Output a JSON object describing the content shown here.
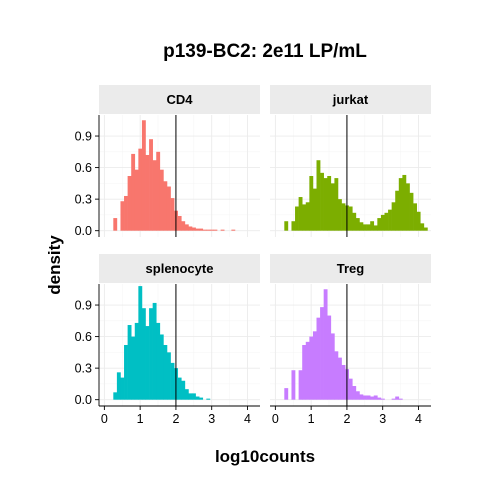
{
  "chart_data": {
    "type": "histogram",
    "title": "p139-BC2: 2e11 LP/mL",
    "xlabel": "log10counts",
    "ylabel": "density",
    "xlim": [
      -0.15,
      4.35
    ],
    "ylim": [
      -0.06,
      1.1
    ],
    "x_ticks": [
      0,
      1,
      2,
      3,
      4
    ],
    "y_ticks": [
      0.0,
      0.3,
      0.6,
      0.9
    ],
    "y_tick_labels": [
      "0.0",
      "0.3",
      "0.6",
      "0.9"
    ],
    "vline_x": 2,
    "bin_width": 0.1,
    "layout": "2x2 facet grid",
    "grid": true,
    "facets": [
      {
        "label": "CD4",
        "color": "#F8766D",
        "bins": [
          {
            "x": 0.3,
            "y": 0.12
          },
          {
            "x": 0.5,
            "y": 0.28
          },
          {
            "x": 0.6,
            "y": 0.33
          },
          {
            "x": 0.7,
            "y": 0.52
          },
          {
            "x": 0.8,
            "y": 0.73
          },
          {
            "x": 0.9,
            "y": 0.58
          },
          {
            "x": 1.0,
            "y": 0.78
          },
          {
            "x": 1.1,
            "y": 1.05
          },
          {
            "x": 1.2,
            "y": 0.72
          },
          {
            "x": 1.3,
            "y": 0.87
          },
          {
            "x": 1.4,
            "y": 0.67
          },
          {
            "x": 1.5,
            "y": 0.75
          },
          {
            "x": 1.6,
            "y": 0.58
          },
          {
            "x": 1.7,
            "y": 0.47
          },
          {
            "x": 1.8,
            "y": 0.42
          },
          {
            "x": 1.9,
            "y": 0.31
          },
          {
            "x": 2.0,
            "y": 0.19
          },
          {
            "x": 2.1,
            "y": 0.14
          },
          {
            "x": 2.2,
            "y": 0.09
          },
          {
            "x": 2.3,
            "y": 0.06
          },
          {
            "x": 2.4,
            "y": 0.04
          },
          {
            "x": 2.5,
            "y": 0.03
          },
          {
            "x": 2.6,
            "y": 0.02
          },
          {
            "x": 2.7,
            "y": 0.02
          },
          {
            "x": 2.8,
            "y": 0.01
          },
          {
            "x": 2.9,
            "y": 0.01
          },
          {
            "x": 3.0,
            "y": 0.01
          },
          {
            "x": 3.1,
            "y": 0.01
          },
          {
            "x": 3.3,
            "y": 0.01
          },
          {
            "x": 3.6,
            "y": 0.01
          }
        ]
      },
      {
        "label": "jurkat",
        "color": "#7CAE00",
        "bins": [
          {
            "x": 0.3,
            "y": 0.09
          },
          {
            "x": 0.5,
            "y": 0.09
          },
          {
            "x": 0.6,
            "y": 0.23
          },
          {
            "x": 0.7,
            "y": 0.32
          },
          {
            "x": 0.8,
            "y": 0.25
          },
          {
            "x": 0.9,
            "y": 0.27
          },
          {
            "x": 1.0,
            "y": 0.52
          },
          {
            "x": 1.1,
            "y": 0.4
          },
          {
            "x": 1.2,
            "y": 0.67
          },
          {
            "x": 1.3,
            "y": 0.55
          },
          {
            "x": 1.4,
            "y": 0.5
          },
          {
            "x": 1.5,
            "y": 0.52
          },
          {
            "x": 1.6,
            "y": 0.45
          },
          {
            "x": 1.7,
            "y": 0.5
          },
          {
            "x": 1.8,
            "y": 0.3
          },
          {
            "x": 1.9,
            "y": 0.26
          },
          {
            "x": 2.0,
            "y": 0.24
          },
          {
            "x": 2.1,
            "y": 0.23
          },
          {
            "x": 2.2,
            "y": 0.17
          },
          {
            "x": 2.3,
            "y": 0.12
          },
          {
            "x": 2.4,
            "y": 0.08
          },
          {
            "x": 2.5,
            "y": 0.06
          },
          {
            "x": 2.6,
            "y": 0.06
          },
          {
            "x": 2.7,
            "y": 0.09
          },
          {
            "x": 2.8,
            "y": 0.05
          },
          {
            "x": 2.9,
            "y": 0.12
          },
          {
            "x": 3.0,
            "y": 0.15
          },
          {
            "x": 3.1,
            "y": 0.17
          },
          {
            "x": 3.2,
            "y": 0.2
          },
          {
            "x": 3.3,
            "y": 0.27
          },
          {
            "x": 3.4,
            "y": 0.38
          },
          {
            "x": 3.5,
            "y": 0.5
          },
          {
            "x": 3.6,
            "y": 0.53
          },
          {
            "x": 3.7,
            "y": 0.45
          },
          {
            "x": 3.8,
            "y": 0.36
          },
          {
            "x": 3.9,
            "y": 0.26
          },
          {
            "x": 4.0,
            "y": 0.18
          },
          {
            "x": 4.1,
            "y": 0.07
          },
          {
            "x": 4.2,
            "y": 0.03
          }
        ]
      },
      {
        "label": "splenocyte",
        "color": "#00BFC4",
        "bins": [
          {
            "x": 0.3,
            "y": 0.07
          },
          {
            "x": 0.4,
            "y": 0.26
          },
          {
            "x": 0.5,
            "y": 0.21
          },
          {
            "x": 0.6,
            "y": 0.52
          },
          {
            "x": 0.7,
            "y": 0.71
          },
          {
            "x": 0.8,
            "y": 0.6
          },
          {
            "x": 0.9,
            "y": 0.73
          },
          {
            "x": 1.0,
            "y": 1.08
          },
          {
            "x": 1.1,
            "y": 0.87
          },
          {
            "x": 1.2,
            "y": 0.7
          },
          {
            "x": 1.3,
            "y": 0.87
          },
          {
            "x": 1.4,
            "y": 0.92
          },
          {
            "x": 1.5,
            "y": 0.73
          },
          {
            "x": 1.6,
            "y": 0.62
          },
          {
            "x": 1.7,
            "y": 0.52
          },
          {
            "x": 1.8,
            "y": 0.45
          },
          {
            "x": 1.9,
            "y": 0.35
          },
          {
            "x": 2.0,
            "y": 0.3
          },
          {
            "x": 2.1,
            "y": 0.21
          },
          {
            "x": 2.2,
            "y": 0.18
          },
          {
            "x": 2.3,
            "y": 0.1
          },
          {
            "x": 2.4,
            "y": 0.06
          },
          {
            "x": 2.5,
            "y": 0.06
          },
          {
            "x": 2.6,
            "y": 0.03
          },
          {
            "x": 2.7,
            "y": 0.02
          },
          {
            "x": 2.9,
            "y": 0.01
          }
        ]
      },
      {
        "label": "Treg",
        "color": "#C77CFF",
        "bins": [
          {
            "x": 0.3,
            "y": 0.11
          },
          {
            "x": 0.5,
            "y": 0.28
          },
          {
            "x": 0.7,
            "y": 0.28
          },
          {
            "x": 0.8,
            "y": 0.52
          },
          {
            "x": 0.9,
            "y": 0.55
          },
          {
            "x": 1.0,
            "y": 0.6
          },
          {
            "x": 1.1,
            "y": 0.65
          },
          {
            "x": 1.2,
            "y": 0.78
          },
          {
            "x": 1.3,
            "y": 0.88
          },
          {
            "x": 1.4,
            "y": 1.05
          },
          {
            "x": 1.5,
            "y": 0.8
          },
          {
            "x": 1.6,
            "y": 0.63
          },
          {
            "x": 1.7,
            "y": 0.46
          },
          {
            "x": 1.8,
            "y": 0.4
          },
          {
            "x": 1.9,
            "y": 0.33
          },
          {
            "x": 2.0,
            "y": 0.29
          },
          {
            "x": 2.1,
            "y": 0.2
          },
          {
            "x": 2.2,
            "y": 0.13
          },
          {
            "x": 2.3,
            "y": 0.08
          },
          {
            "x": 2.4,
            "y": 0.05
          },
          {
            "x": 2.5,
            "y": 0.04
          },
          {
            "x": 2.6,
            "y": 0.04
          },
          {
            "x": 2.7,
            "y": 0.03
          },
          {
            "x": 2.8,
            "y": 0.04
          },
          {
            "x": 2.9,
            "y": 0.02
          },
          {
            "x": 3.0,
            "y": 0.01
          },
          {
            "x": 3.3,
            "y": 0.01
          },
          {
            "x": 3.4,
            "y": 0.03
          },
          {
            "x": 3.5,
            "y": 0.01
          }
        ]
      }
    ]
  }
}
